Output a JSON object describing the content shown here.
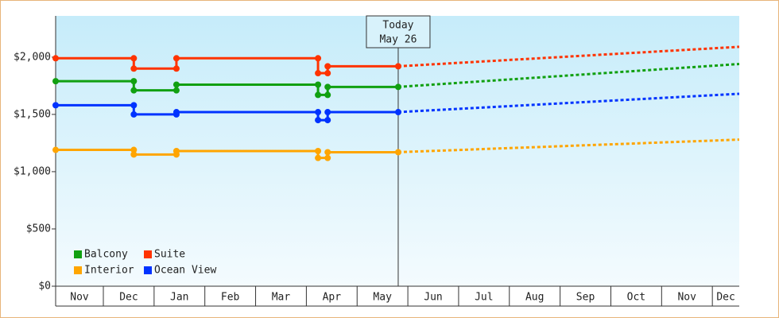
{
  "chart_data": {
    "type": "step-line",
    "categories": [
      "Nov",
      "Dec",
      "Jan",
      "Feb",
      "Mar",
      "Apr",
      "May",
      "Jun",
      "Jul",
      "Aug",
      "Sep",
      "Oct",
      "Nov",
      "Dec"
    ],
    "xlim": [
      0.06,
      13.53
    ],
    "xticks": [
      1,
      2,
      3,
      4,
      5,
      6,
      7,
      8,
      9,
      10,
      11,
      12,
      13
    ],
    "ylim": [
      0,
      2360
    ],
    "yticks": [
      {
        "value": 0,
        "label": "$0"
      },
      {
        "value": 500,
        "label": "$500"
      },
      {
        "value": 1000,
        "label": "$1,000"
      },
      {
        "value": 1500,
        "label": "$1,500"
      },
      {
        "value": 2000,
        "label": "$2,000"
      }
    ],
    "today": {
      "x": 6.81,
      "label": [
        "Today",
        "May 26"
      ]
    },
    "x": [
      0.06,
      1.6,
      1.6,
      2.44,
      2.44,
      5.23,
      5.23,
      5.42,
      5.42,
      6.81
    ],
    "forecast_x": [
      6.81,
      13.53
    ],
    "series": [
      {
        "name": "Balcony",
        "color": "#11a011",
        "values": [
          1790,
          1790,
          1710,
          1710,
          1760,
          1760,
          1670,
          1670,
          1740,
          1740
        ],
        "forecast": [
          1740,
          1940
        ]
      },
      {
        "name": "Suite",
        "color": "#ff3300",
        "values": [
          1990,
          1990,
          1900,
          1900,
          1990,
          1990,
          1860,
          1860,
          1920,
          1920
        ],
        "forecast": [
          1920,
          2090
        ]
      },
      {
        "name": "Interior",
        "color": "#ffa500",
        "values": [
          1190,
          1190,
          1150,
          1150,
          1180,
          1180,
          1120,
          1120,
          1170,
          1170
        ],
        "forecast": [
          1170,
          1280
        ]
      },
      {
        "name": "Ocean View",
        "color": "#0033ff",
        "values": [
          1580,
          1580,
          1500,
          1500,
          1520,
          1520,
          1450,
          1450,
          1520,
          1520
        ],
        "forecast": [
          1520,
          1680
        ]
      }
    ]
  }
}
